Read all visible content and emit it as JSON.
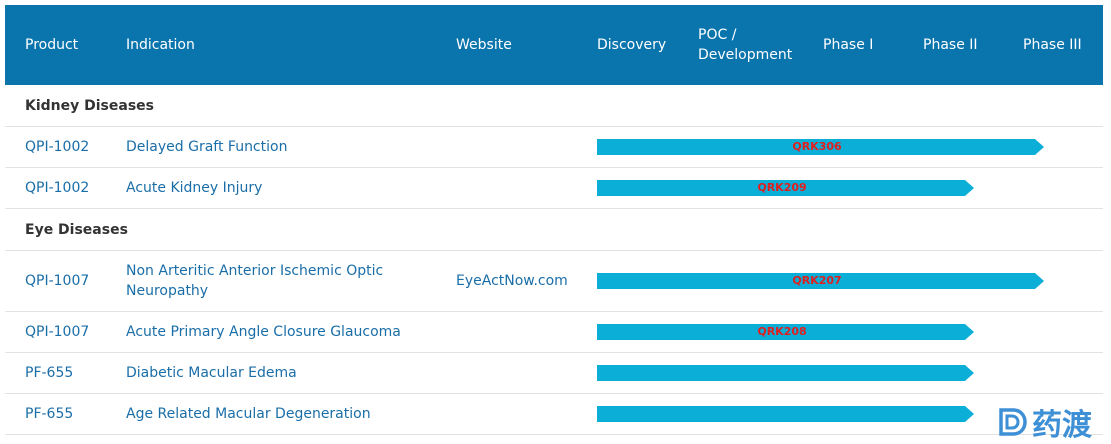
{
  "header": {
    "product": "Product",
    "indication": "Indication",
    "website": "Website",
    "discovery": "Discovery",
    "poc_line1": "POC /",
    "poc_line2": "Development",
    "phase1": "Phase I",
    "phase2": "Phase II",
    "phase3": "Phase III"
  },
  "sections": [
    {
      "title": "Kidney Diseases",
      "rows": [
        {
          "product": "QPI-1002",
          "indication": "Delayed Graft Function",
          "website": "",
          "stage": "Phase III",
          "label": "QRK306"
        },
        {
          "product": "QPI-1002",
          "indication": "Acute Kidney Injury",
          "website": "",
          "stage": "Phase II",
          "label": "QRK209"
        }
      ]
    },
    {
      "title": "Eye Diseases",
      "rows": [
        {
          "product": "QPI-1007",
          "indication": "Non Arteritic Anterior Ischemic Optic Neuropathy",
          "website": "EyeActNow.com",
          "stage": "Phase III",
          "label": "QRK207"
        },
        {
          "product": "QPI-1007",
          "indication": "Acute Primary Angle Closure Glaucoma",
          "website": "",
          "stage": "Phase II",
          "label": "QRK208"
        },
        {
          "product": "PF-655",
          "indication": "Diabetic Macular Edema",
          "website": "",
          "stage": "Phase II",
          "label": ""
        },
        {
          "product": "PF-655",
          "indication": "Age Related Macular Degeneration",
          "website": "",
          "stage": "Phase II",
          "label": ""
        }
      ]
    }
  ],
  "watermark": {
    "text": "药渡",
    "icon": "yaodu-logo-icon",
    "color": "#3d8fd6"
  },
  "colors": {
    "header_bg": "#0a74ad",
    "bar": "#0aaed6",
    "link": "#1a6ea8",
    "bar_label": "#e02020"
  }
}
